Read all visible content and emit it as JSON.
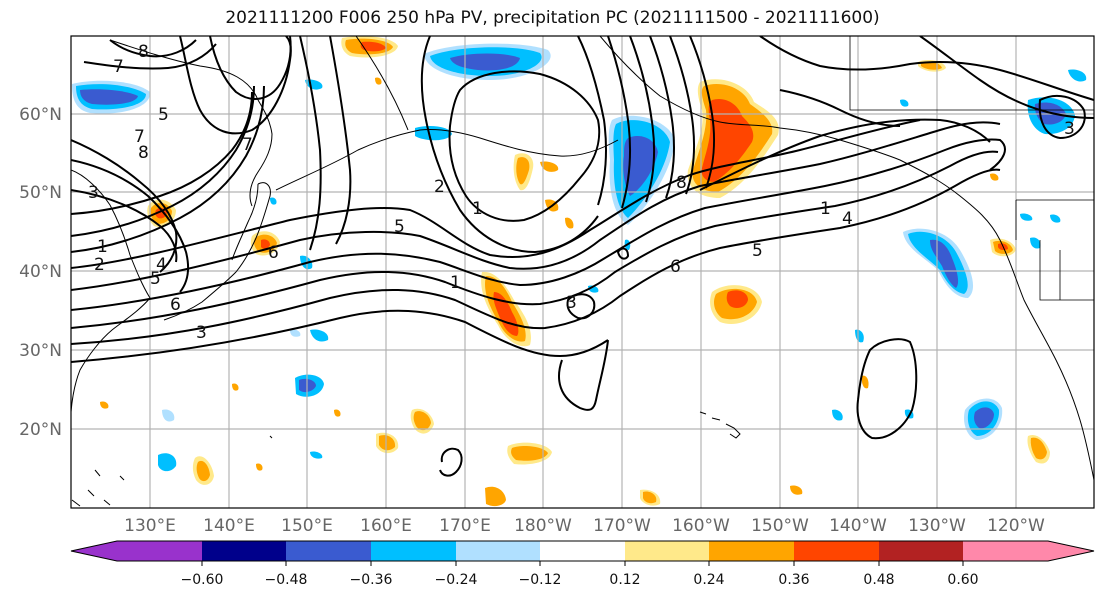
{
  "title": "2021111200 F006 250 hPa PV, precipitation PC (2021111500 - 2021111600)",
  "map": {
    "lat_ticks": [
      "60°N",
      "50°N",
      "40°N",
      "30°N",
      "20°N"
    ],
    "lon_ticks": [
      "130°E",
      "140°E",
      "150°E",
      "160°E",
      "170°E",
      "180°W",
      "170°W",
      "160°W",
      "150°W",
      "140°W",
      "130°W",
      "120°W"
    ],
    "gridlines": true,
    "pv_contour_labels": [
      "8",
      "7",
      "5",
      "7",
      "8",
      "3",
      "1",
      "2",
      "4",
      "5",
      "6",
      "3",
      "7",
      "6",
      "5",
      "2",
      "1",
      "1",
      "3",
      "6",
      "5",
      "8",
      "1",
      "4",
      "3"
    ],
    "land_color": "#ffffff",
    "coast_color": "#000000"
  },
  "colorbar": {
    "tick_labels": [
      "−0.60",
      "−0.48",
      "−0.36",
      "−0.24",
      "−0.12",
      "0.12",
      "0.24",
      "0.36",
      "0.48",
      "0.60"
    ],
    "colors": [
      "#9932CC",
      "#00008B",
      "#3A5BD0",
      "#00BFFF",
      "#B0E0FF",
      "#FFFFFF",
      "#FFE98A",
      "#FFA500",
      "#FF4500",
      "#B22222",
      "#FF88AA"
    ],
    "extend": "both"
  },
  "color_key": {
    "neg_strong": "#3A5BD0",
    "neg_mid": "#00BFFF",
    "neg_weak": "#B0E0FF",
    "pos_weak": "#FFE98A",
    "pos_mid": "#FFA500",
    "pos_strong": "#FF4500"
  }
}
